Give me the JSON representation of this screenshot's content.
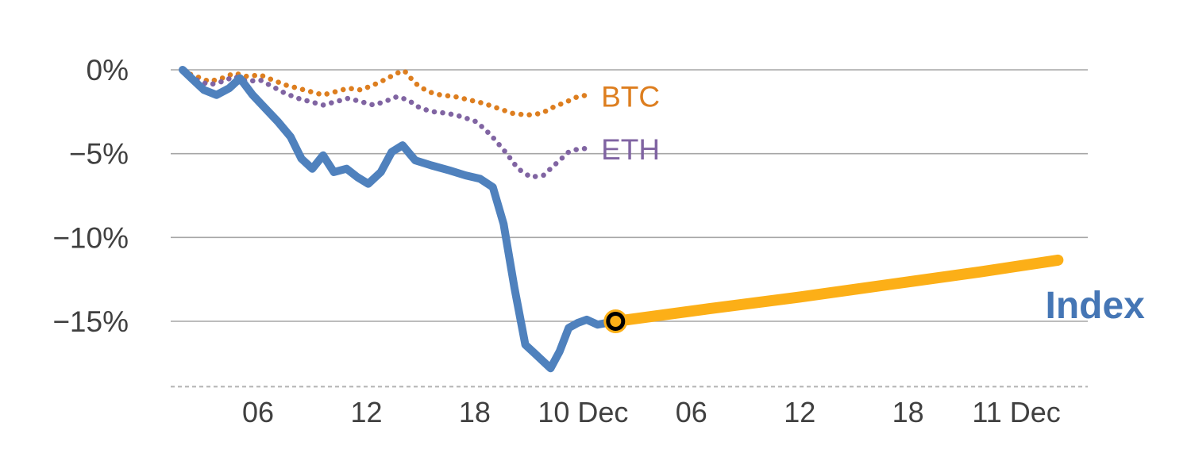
{
  "page": {
    "background": "#ffffff"
  },
  "chart_data": {
    "type": "line",
    "title": "",
    "x_unit": "hours-since-09-dec-00:00",
    "x_range": [
      1.16,
      51.9
    ],
    "y_range_pct": [
      0.5,
      -18.9
    ],
    "grid": {
      "y_gridlines": true,
      "x_gridlines": false,
      "gridline_color": "#a6a6a6",
      "baseline_pct": -18.9,
      "baseline_style": "dashed",
      "baseline_color": "#b3b3b3"
    },
    "legend_position": "inline-labels",
    "y_ticks": [
      {
        "value": 0,
        "label": "0%"
      },
      {
        "value": -5,
        "label": "−5%"
      },
      {
        "value": -10,
        "label": "−10%"
      },
      {
        "value": -15,
        "label": "−15%"
      }
    ],
    "x_ticks": [
      {
        "value": 6,
        "label": "06"
      },
      {
        "value": 12,
        "label": "12"
      },
      {
        "value": 18,
        "label": "18"
      },
      {
        "value": 24,
        "label": "10 Dec"
      },
      {
        "value": 30,
        "label": "06"
      },
      {
        "value": 36,
        "label": "12"
      },
      {
        "value": 42,
        "label": "18"
      },
      {
        "value": 48,
        "label": "11 Dec"
      }
    ],
    "series": [
      {
        "name": "BTC",
        "color": "#dd7e1f",
        "line": "dotted",
        "width": 6.5,
        "points": [
          [
            1.82,
            -0.1
          ],
          [
            2.6,
            -0.4
          ],
          [
            3.3,
            -0.7
          ],
          [
            4.0,
            -0.5
          ],
          [
            4.7,
            -0.2
          ],
          [
            5.4,
            -0.4
          ],
          [
            6.1,
            -0.3
          ],
          [
            6.8,
            -0.6
          ],
          [
            7.5,
            -0.9
          ],
          [
            8.2,
            -1.1
          ],
          [
            8.9,
            -1.3
          ],
          [
            9.6,
            -1.5
          ],
          [
            10.3,
            -1.3
          ],
          [
            11.0,
            -1.1
          ],
          [
            11.7,
            -1.2
          ],
          [
            12.4,
            -0.9
          ],
          [
            13.0,
            -0.6
          ],
          [
            13.7,
            -0.2
          ],
          [
            14.1,
            -0.05
          ],
          [
            14.7,
            -0.8
          ],
          [
            15.4,
            -1.3
          ],
          [
            16.1,
            -1.5
          ],
          [
            16.9,
            -1.6
          ],
          [
            17.7,
            -1.8
          ],
          [
            18.5,
            -2.0
          ],
          [
            19.3,
            -2.3
          ],
          [
            20.1,
            -2.6
          ],
          [
            20.9,
            -2.7
          ],
          [
            21.7,
            -2.6
          ],
          [
            22.4,
            -2.2
          ],
          [
            23.1,
            -1.9
          ],
          [
            23.7,
            -1.6
          ],
          [
            24.3,
            -1.5
          ]
        ]
      },
      {
        "name": "ETH",
        "color": "#8064a2",
        "line": "dotted",
        "width": 6.5,
        "points": [
          [
            1.82,
            -0.1
          ],
          [
            2.6,
            -0.6
          ],
          [
            3.3,
            -0.9
          ],
          [
            4.0,
            -0.7
          ],
          [
            4.7,
            -0.4
          ],
          [
            5.4,
            -0.7
          ],
          [
            6.1,
            -0.6
          ],
          [
            6.8,
            -1.0
          ],
          [
            7.5,
            -1.4
          ],
          [
            8.2,
            -1.7
          ],
          [
            8.9,
            -1.9
          ],
          [
            9.6,
            -2.1
          ],
          [
            10.3,
            -1.9
          ],
          [
            11.0,
            -1.7
          ],
          [
            11.7,
            -1.9
          ],
          [
            12.4,
            -2.1
          ],
          [
            13.0,
            -1.9
          ],
          [
            13.7,
            -1.6
          ],
          [
            14.3,
            -1.8
          ],
          [
            15.0,
            -2.3
          ],
          [
            15.7,
            -2.5
          ],
          [
            16.5,
            -2.6
          ],
          [
            17.3,
            -2.8
          ],
          [
            18.1,
            -3.1
          ],
          [
            18.9,
            -3.9
          ],
          [
            19.7,
            -4.9
          ],
          [
            20.4,
            -5.9
          ],
          [
            21.1,
            -6.4
          ],
          [
            21.8,
            -6.3
          ],
          [
            22.5,
            -5.6
          ],
          [
            23.2,
            -4.9
          ],
          [
            23.8,
            -4.7
          ],
          [
            24.3,
            -4.7
          ]
        ]
      },
      {
        "name": "Index",
        "color": "#4f81bd",
        "line": "solid",
        "width": 10,
        "points": [
          [
            1.82,
            0.0
          ],
          [
            2.4,
            -0.6
          ],
          [
            3.0,
            -1.2
          ],
          [
            3.7,
            -1.5
          ],
          [
            4.4,
            -1.1
          ],
          [
            5.0,
            -0.5
          ],
          [
            5.7,
            -1.5
          ],
          [
            6.4,
            -2.3
          ],
          [
            7.1,
            -3.1
          ],
          [
            7.8,
            -4.0
          ],
          [
            8.4,
            -5.3
          ],
          [
            9.0,
            -5.9
          ],
          [
            9.6,
            -5.1
          ],
          [
            10.2,
            -6.1
          ],
          [
            10.9,
            -5.9
          ],
          [
            11.5,
            -6.4
          ],
          [
            12.1,
            -6.8
          ],
          [
            12.8,
            -6.1
          ],
          [
            13.4,
            -4.9
          ],
          [
            14.0,
            -4.5
          ],
          [
            14.7,
            -5.4
          ],
          [
            15.6,
            -5.7
          ],
          [
            16.6,
            -6.0
          ],
          [
            17.5,
            -6.3
          ],
          [
            18.3,
            -6.5
          ],
          [
            19.0,
            -7.0
          ],
          [
            19.6,
            -9.2
          ],
          [
            20.2,
            -13.0
          ],
          [
            20.8,
            -16.4
          ],
          [
            21.3,
            -16.9
          ],
          [
            21.8,
            -17.4
          ],
          [
            22.2,
            -17.8
          ],
          [
            22.7,
            -16.8
          ],
          [
            23.2,
            -15.4
          ],
          [
            23.7,
            -15.1
          ],
          [
            24.2,
            -14.9
          ],
          [
            24.8,
            -15.2
          ],
          [
            25.3,
            -15.1
          ],
          [
            25.8,
            -15.0
          ]
        ]
      },
      {
        "name": "Index projection",
        "color": "#fcaf17",
        "line": "solid",
        "width": 14,
        "points": [
          [
            25.8,
            -15.0
          ],
          [
            31.0,
            -14.25
          ],
          [
            36.0,
            -13.55
          ],
          [
            41.0,
            -12.8
          ],
          [
            46.0,
            -12.05
          ],
          [
            50.3,
            -11.35
          ]
        ]
      }
    ],
    "marker": {
      "t": 25.8,
      "pct": -15.0,
      "halo_color": "#fcaf17",
      "ring_color": "#000000"
    },
    "annotations": [
      {
        "text": "BTC",
        "color": "#dd7e1f",
        "t": 25.0,
        "pct": -2.2,
        "size": 37,
        "bold": false
      },
      {
        "text": "ETH",
        "color": "#8064a2",
        "t": 25.0,
        "pct": -5.35,
        "size": 37,
        "bold": false
      },
      {
        "text": "Index",
        "color": "#4576b5",
        "t": 49.6,
        "pct": -14.8,
        "size": 48,
        "bold": true
      }
    ],
    "axis_label_color": "#404040"
  }
}
